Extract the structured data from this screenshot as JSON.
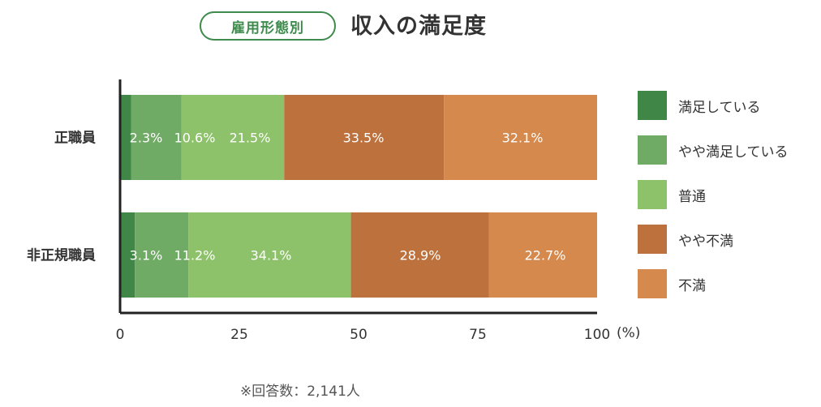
{
  "header": {
    "category_badge": "雇用形態別",
    "title": "収入の満足度"
  },
  "chart_data": {
    "type": "bar",
    "orientation": "horizontal",
    "stacked": true,
    "categories": [
      "正職員",
      "非正規職員"
    ],
    "series": [
      {
        "name": "満足している",
        "color": "#3f8647",
        "values": [
          2.3,
          3.1
        ]
      },
      {
        "name": "やや満足している",
        "color": "#70ab66",
        "values": [
          10.6,
          11.2
        ]
      },
      {
        "name": "普通",
        "color": "#8dc16a",
        "values": [
          21.5,
          34.1
        ]
      },
      {
        "name": "やや不満",
        "color": "#bd713d",
        "values": [
          33.5,
          28.9
        ]
      },
      {
        "name": "不満",
        "color": "#d6894d",
        "values": [
          32.1,
          22.7
        ]
      }
    ],
    "data_labels": [
      [
        "2.3%",
        "10.6%",
        "21.5%",
        "33.5%",
        "32.1%"
      ],
      [
        "3.1%",
        "11.2%",
        "34.1%",
        "28.9%",
        "22.7%"
      ]
    ],
    "xlim": [
      0,
      100
    ],
    "xticks": [
      "0",
      "25",
      "50",
      "75",
      "100"
    ],
    "x_unit": "(%)",
    "legend_position": "right",
    "grid": false
  },
  "footnote": "※回答数：2,141人"
}
